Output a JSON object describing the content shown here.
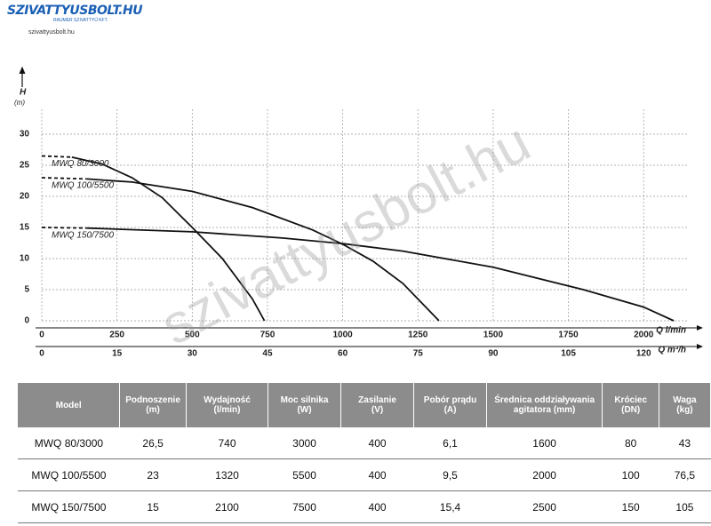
{
  "header": {
    "logo": "SZIVATTYUSBOLT.HU",
    "logo_subtitle": "RAUMER SZIVATTYÚ KFT.",
    "url": "szivattyusbolt.hu"
  },
  "watermark": "szivattyusbolt.hu",
  "chart_data": {
    "type": "line",
    "y_label": "H",
    "y_unit": "(m)",
    "x_label": "Q l/min",
    "x2_label": "Q m³/h",
    "xlim": [
      0,
      2150
    ],
    "xticks": [
      0,
      250,
      500,
      750,
      1000,
      1250,
      1500,
      1750,
      2000
    ],
    "x2lim": [
      0,
      129
    ],
    "x2ticks": [
      0,
      15,
      30,
      45,
      60,
      75,
      90,
      105,
      120
    ],
    "ylim": [
      0,
      34
    ],
    "yticks": [
      0,
      5,
      10,
      15,
      20,
      25,
      30
    ],
    "grid": true,
    "series": [
      {
        "name": "MWQ 80/3000",
        "color": "#111111",
        "x": [
          0,
          100,
          200,
          300,
          400,
          500,
          600,
          700,
          740
        ],
        "values": [
          26.5,
          26.3,
          25.2,
          23.0,
          19.8,
          15.0,
          10.0,
          3.5,
          0
        ]
      },
      {
        "name": "MWQ 100/5500",
        "color": "#111111",
        "x": [
          0,
          150,
          300,
          500,
          700,
          900,
          1000,
          1100,
          1200,
          1320
        ],
        "values": [
          23,
          22.8,
          22.3,
          20.8,
          18.2,
          14.6,
          12.3,
          9.6,
          6.0,
          0
        ]
      },
      {
        "name": "MWQ 150/7500",
        "color": "#111111",
        "x": [
          0,
          150,
          500,
          800,
          1000,
          1200,
          1500,
          1800,
          2000,
          2100
        ],
        "values": [
          15,
          14.9,
          14.3,
          13.3,
          12.4,
          11.2,
          8.6,
          5.0,
          2.2,
          0
        ]
      }
    ]
  },
  "table": {
    "columns": [
      "Model",
      "Podnoszenie\n(m)",
      "Wydajność\n(l/min)",
      "Moc silnika\n(W)",
      "Zasilanie\n(V)",
      "Pobór prądu\n(A)",
      "Średnica oddziaływania\nagitatora (mm)",
      "Króciec\n(DN)",
      "Waga\n(kg)"
    ],
    "rows": [
      [
        "MWQ 80/3000",
        "26,5",
        "740",
        "3000",
        "400",
        "6,1",
        "1600",
        "80",
        "43"
      ],
      [
        "MWQ 100/5500",
        "23",
        "1320",
        "5500",
        "400",
        "9,5",
        "2000",
        "100",
        "76,5"
      ],
      [
        "MWQ 150/7500",
        "15",
        "2100",
        "7500",
        "400",
        "15,4",
        "2500",
        "150",
        "105"
      ]
    ]
  }
}
